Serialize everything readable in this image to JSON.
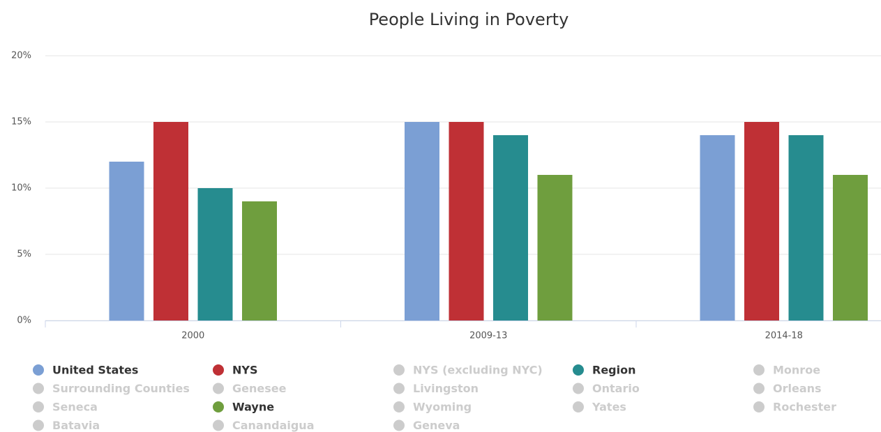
{
  "chart_data": {
    "type": "bar",
    "title": "People Living in Poverty",
    "categories": [
      "2000",
      "2009-13",
      "2014-18"
    ],
    "ylim": [
      0,
      20
    ],
    "yticks": [
      {
        "value": 0,
        "label": "0%"
      },
      {
        "value": 5,
        "label": "5%"
      },
      {
        "value": 10,
        "label": "10%"
      },
      {
        "value": 15,
        "label": "15%"
      },
      {
        "value": 20,
        "label": "20%"
      }
    ],
    "grid": true,
    "legend": "bottom",
    "hidden_color": "#cccccc",
    "series": [
      {
        "name": "United States",
        "color": "#7b9fd4",
        "visible": true,
        "values": [
          12,
          15,
          14
        ]
      },
      {
        "name": "NYS",
        "color": "#bf3035",
        "visible": true,
        "values": [
          15,
          15,
          15
        ]
      },
      {
        "name": "NYS (excluding NYC)",
        "visible": false
      },
      {
        "name": "Region",
        "color": "#268c8f",
        "visible": true,
        "values": [
          10,
          14,
          14
        ]
      },
      {
        "name": "Monroe",
        "visible": false
      },
      {
        "name": "Surrounding Counties",
        "visible": false
      },
      {
        "name": "Genesee",
        "visible": false
      },
      {
        "name": "Livingston",
        "visible": false
      },
      {
        "name": "Ontario",
        "visible": false
      },
      {
        "name": "Orleans",
        "visible": false
      },
      {
        "name": "Seneca",
        "visible": false
      },
      {
        "name": "Wayne",
        "color": "#6f9e3e",
        "visible": true,
        "values": [
          9,
          11,
          11
        ]
      },
      {
        "name": "Wyoming",
        "visible": false
      },
      {
        "name": "Yates",
        "visible": false
      },
      {
        "name": "Rochester",
        "visible": false
      },
      {
        "name": "Batavia",
        "visible": false
      },
      {
        "name": "Canandaigua",
        "visible": false
      },
      {
        "name": "Geneva",
        "visible": false
      }
    ]
  }
}
